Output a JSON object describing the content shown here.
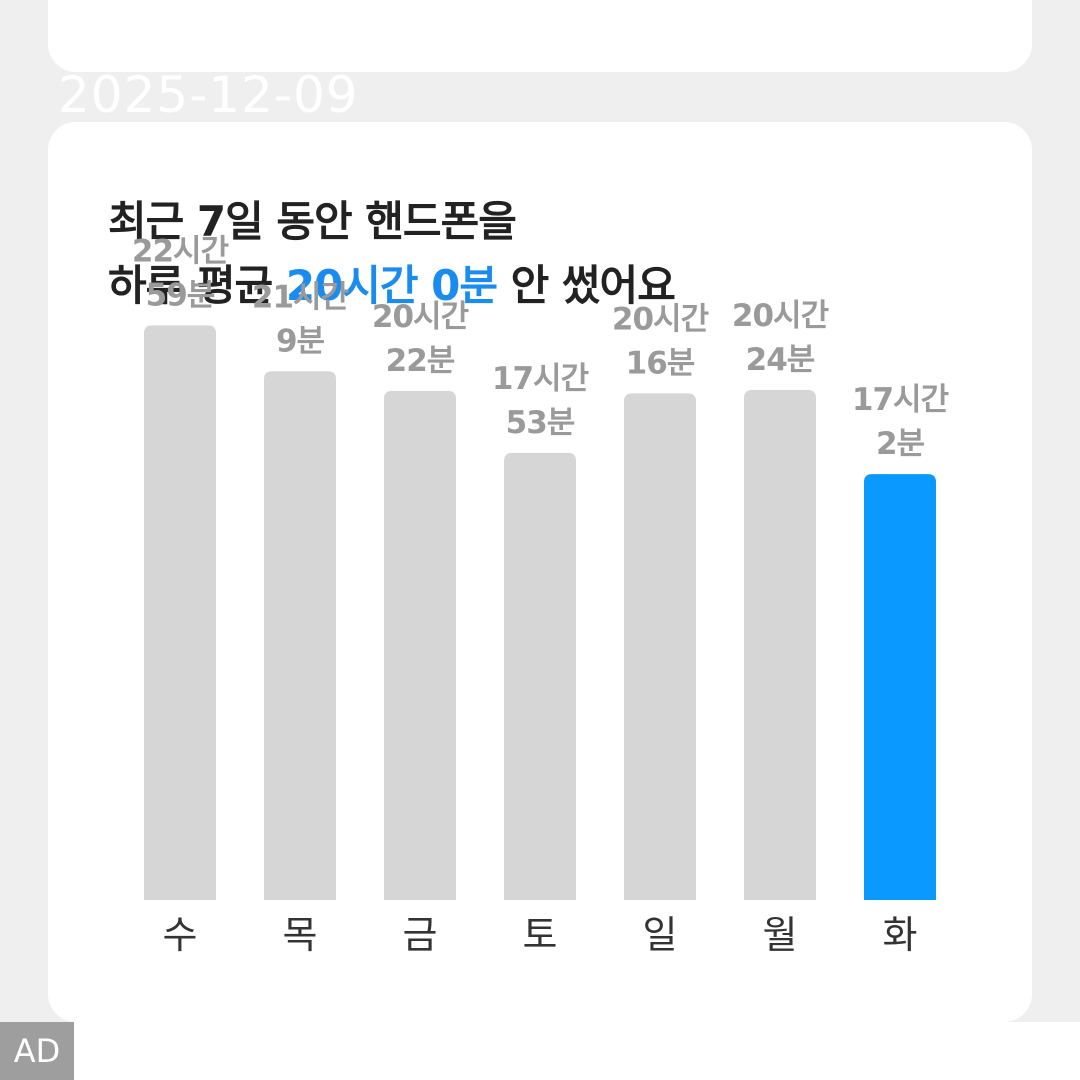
{
  "date_stamp": "2025-12-09",
  "headline": {
    "line1": "최근 7일 동안 핸드폰을",
    "line2_prefix": "하루 평균 ",
    "line2_highlight": "20시간 0분",
    "line2_suffix": " 안 썼어요"
  },
  "ad_label": "AD",
  "colors": {
    "accent": "#1a8cf0",
    "bar_default": "#d6d6d6",
    "bar_highlight": "#0a99ff"
  },
  "chart_data": {
    "type": "bar",
    "categories": [
      "수",
      "목",
      "금",
      "토",
      "일",
      "월",
      "화"
    ],
    "values": [
      1379,
      1269,
      1222,
      1073,
      1216,
      1224,
      1022
    ],
    "value_labels": [
      [
        "22시간",
        "59분"
      ],
      [
        "21시간",
        "9분"
      ],
      [
        "20시간",
        "22분"
      ],
      [
        "17시간",
        "53분"
      ],
      [
        "20시간",
        "16분"
      ],
      [
        "20시간",
        "24분"
      ],
      [
        "17시간",
        "2분"
      ]
    ],
    "highlight_index": 6,
    "ylim": [
      0,
      1440
    ],
    "grid": false
  }
}
